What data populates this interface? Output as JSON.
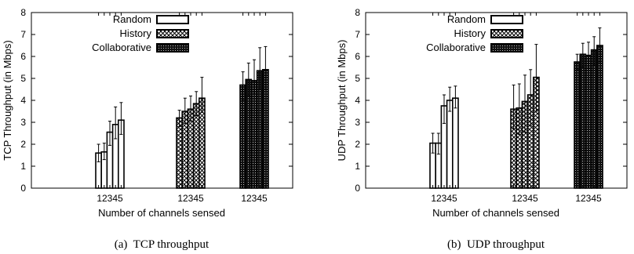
{
  "chart_data": [
    {
      "type": "bar",
      "caption": "(a)  TCP throughput",
      "ylabel": "TCP Throughput (in Mbps)",
      "xlabel": "Number of channels sensed",
      "ylim": [
        0,
        8
      ],
      "yticks": [
        "0",
        "1",
        "2",
        "3",
        "4",
        "5",
        "6",
        "7",
        "8"
      ],
      "group_tick_labels": [
        "12345",
        "12345",
        "12345"
      ],
      "legend_position": "top-left",
      "grid": false,
      "series": [
        {
          "name": "Random",
          "pattern": "white",
          "values": [
            1.6,
            1.65,
            2.55,
            2.9,
            3.1
          ],
          "err_low": [
            1.2,
            1.3,
            1.95,
            2.25,
            2.45
          ],
          "err_high": [
            2.0,
            2.05,
            3.05,
            3.7,
            3.9
          ]
        },
        {
          "name": "History",
          "pattern": "crosshatch",
          "values": [
            3.2,
            3.5,
            3.6,
            3.85,
            4.1
          ],
          "err_low": [
            2.8,
            2.95,
            3.05,
            3.3,
            3.45
          ],
          "err_high": [
            3.55,
            4.1,
            4.2,
            4.4,
            5.05
          ]
        },
        {
          "name": "Collaborative",
          "pattern": "dense",
          "values": [
            4.7,
            4.95,
            4.9,
            5.35,
            5.4
          ],
          "err_low": [
            4.0,
            4.2,
            4.3,
            4.5,
            4.5
          ],
          "err_high": [
            5.3,
            5.7,
            5.85,
            6.4,
            6.45
          ]
        }
      ]
    },
    {
      "type": "bar",
      "caption": "(b)  UDP throughput",
      "ylabel": "UDP Throughput (in Mbps)",
      "xlabel": "Number of channels sensed",
      "ylim": [
        0,
        8
      ],
      "yticks": [
        "0",
        "1",
        "2",
        "3",
        "4",
        "5",
        "6",
        "7",
        "8"
      ],
      "group_tick_labels": [
        "12345",
        "12345",
        "12345"
      ],
      "legend_position": "top-left",
      "grid": false,
      "series": [
        {
          "name": "Random",
          "pattern": "white",
          "values": [
            2.05,
            2.05,
            3.75,
            4.0,
            4.1
          ],
          "err_low": [
            1.6,
            1.55,
            2.95,
            3.5,
            3.65
          ],
          "err_high": [
            2.5,
            2.5,
            4.25,
            4.6,
            4.65
          ]
        },
        {
          "name": "History",
          "pattern": "crosshatch",
          "values": [
            3.6,
            3.65,
            3.95,
            4.25,
            5.05
          ],
          "err_low": [
            2.7,
            2.45,
            2.55,
            2.85,
            3.5
          ],
          "err_high": [
            4.7,
            4.75,
            5.15,
            5.4,
            6.55
          ]
        },
        {
          "name": "Collaborative",
          "pattern": "dense",
          "values": [
            5.75,
            6.1,
            6.05,
            6.3,
            6.5
          ],
          "err_low": [
            5.4,
            5.5,
            5.45,
            5.6,
            5.75
          ],
          "err_high": [
            6.1,
            6.6,
            6.65,
            6.9,
            7.3
          ]
        }
      ]
    }
  ]
}
